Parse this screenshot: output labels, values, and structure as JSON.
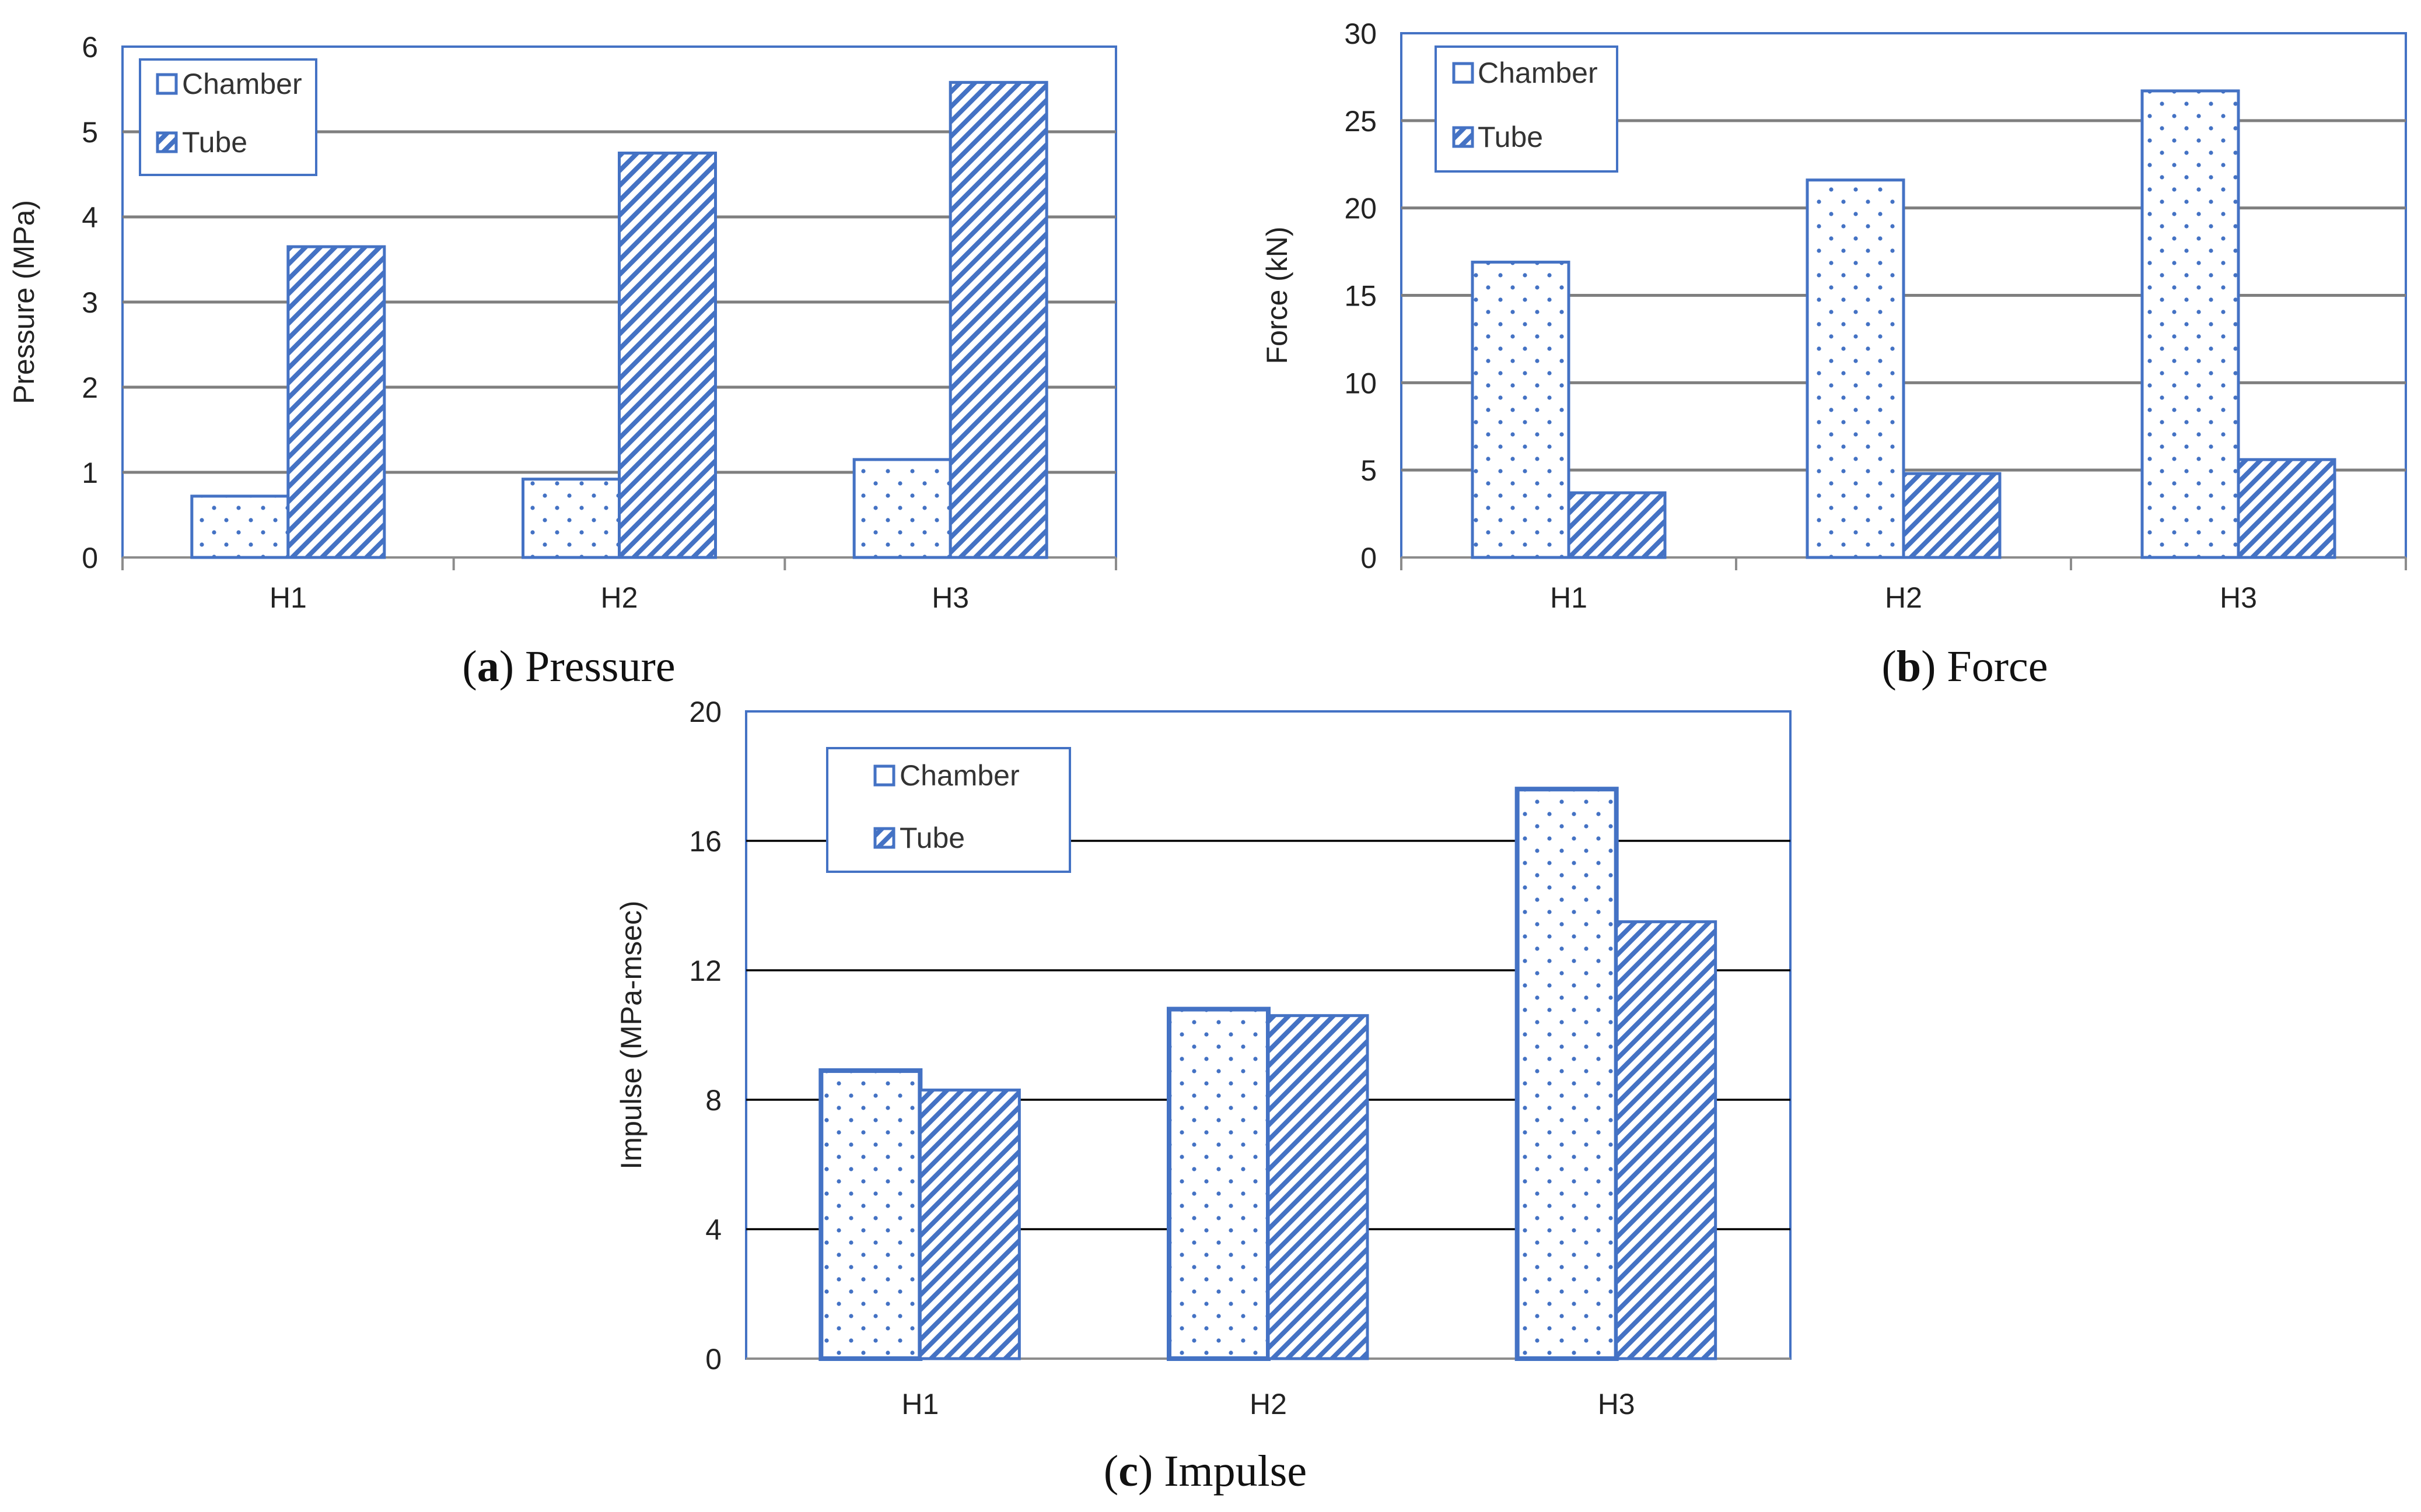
{
  "colors": {
    "bar": "#4472C4",
    "grid": "#7f7f7f",
    "grid_dark": "#000000",
    "frame": "#4472C4"
  },
  "chart_data": [
    {
      "id": "a",
      "type": "bar",
      "caption_letter": "a",
      "caption_text": "Pressure",
      "ylabel": "Pressure (MPa)",
      "categories": [
        "H1",
        "H2",
        "H3"
      ],
      "ylim": [
        0,
        6
      ],
      "yticks": [
        "0",
        "1",
        "2",
        "3",
        "4",
        "5",
        "6"
      ],
      "series": [
        {
          "name": "Chamber",
          "pattern": "dots",
          "values": [
            0.72,
            0.92,
            1.15
          ]
        },
        {
          "name": "Tube",
          "pattern": "hatch",
          "values": [
            3.65,
            4.75,
            5.58
          ]
        }
      ],
      "legend": "top-left",
      "grid": true
    },
    {
      "id": "b",
      "type": "bar",
      "caption_letter": "b",
      "caption_text": "Force",
      "ylabel": "Force (kN)",
      "categories": [
        "H1",
        "H2",
        "H3"
      ],
      "ylim": [
        0,
        30
      ],
      "yticks": [
        "0",
        "5",
        "10",
        "15",
        "20",
        "25",
        "30"
      ],
      "series": [
        {
          "name": "Chamber",
          "pattern": "dots",
          "values": [
            16.9,
            21.6,
            26.7
          ]
        },
        {
          "name": "Tube",
          "pattern": "hatch",
          "values": [
            3.7,
            4.8,
            5.6
          ]
        }
      ],
      "legend": "top-left",
      "grid": true
    },
    {
      "id": "c",
      "type": "bar",
      "caption_letter": "c",
      "caption_text": "Impulse",
      "ylabel": "Impulse (MPa-msec)",
      "categories": [
        "H1",
        "H2",
        "H3"
      ],
      "ylim": [
        0,
        20
      ],
      "yticks": [
        "0",
        "4",
        "8",
        "12",
        "16",
        "20"
      ],
      "series": [
        {
          "name": "Chamber",
          "pattern": "dots",
          "values": [
            8.9,
            10.8,
            17.6
          ]
        },
        {
          "name": "Tube",
          "pattern": "hatch",
          "values": [
            8.3,
            10.6,
            13.5
          ]
        }
      ],
      "legend": "top-left",
      "grid": true
    }
  ]
}
